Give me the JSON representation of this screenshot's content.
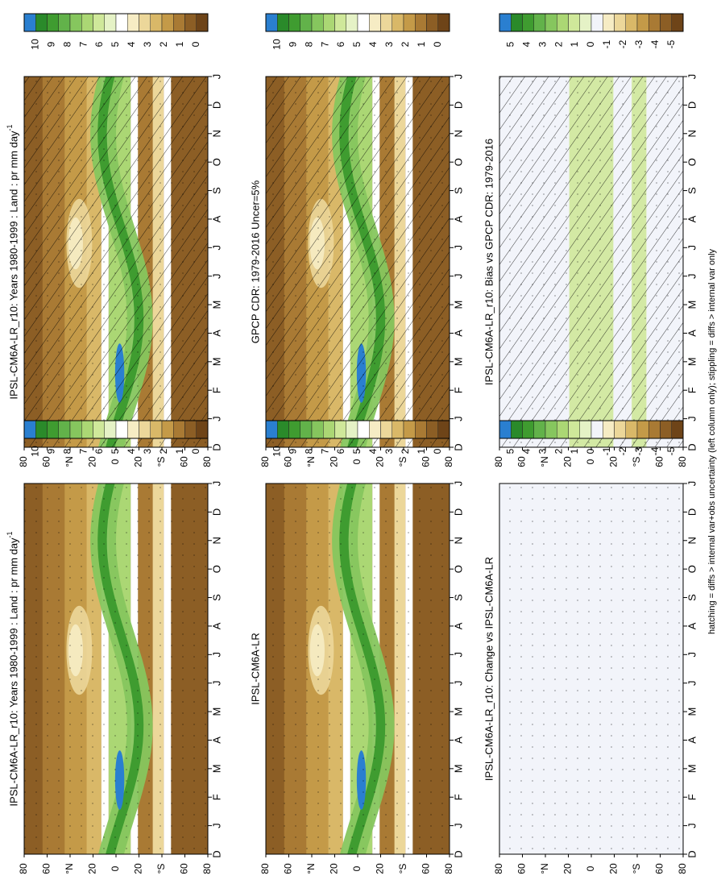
{
  "chart_data": {
    "type": "heatmap",
    "orientation": "rotated-90-clockwise",
    "footer_note": "hatching = diffs > internal var+obs uncertainty (left column only); stippling = diffs > internal var only",
    "panels": [
      {
        "id": "model-left",
        "title": "IPSL-CM6A-LR_r10: Years 1980-1999 : Land : pr mm day",
        "title_suffix": "-1",
        "x_ticks": [
          "D",
          "J",
          "F",
          "M",
          "A",
          "M",
          "J",
          "J",
          "A",
          "S",
          "O",
          "N",
          "D",
          "J"
        ],
        "y_ticks": [
          "80",
          "60",
          "°N",
          "20",
          "0",
          "20",
          "°S",
          "60",
          "80"
        ],
        "colorbar_labels": [
          "10",
          "9",
          "8",
          "7",
          "6",
          "5",
          "4",
          "3",
          "2",
          "1",
          "0"
        ],
        "hatched": true,
        "colorbar": "abs"
      },
      {
        "id": "model-right",
        "title": "IPSL-CM6A-LR_r10: Years 1980-1999 : Land : pr mm day",
        "title_suffix": "-1",
        "x_ticks": [
          "D",
          "J",
          "F",
          "M",
          "A",
          "M",
          "J",
          "J",
          "A",
          "S",
          "O",
          "N",
          "D",
          "J"
        ],
        "y_ticks": [
          "80",
          "60",
          "°N",
          "20",
          "0",
          "20",
          "°S",
          "60",
          "80"
        ],
        "colorbar_labels": [
          "10",
          "9",
          "8",
          "7",
          "6",
          "5",
          "4",
          "3",
          "2",
          "1",
          "0"
        ],
        "hatched": false,
        "colorbar": "abs"
      },
      {
        "id": "obs-left",
        "title": "GPCP CDR: 1979-2016 Uncer=5%",
        "title_suffix": "",
        "x_ticks": [
          "D",
          "J",
          "F",
          "M",
          "A",
          "M",
          "J",
          "J",
          "A",
          "S",
          "O",
          "N",
          "D",
          "J"
        ],
        "y_ticks": [
          "80",
          "60",
          "°N",
          "20",
          "0",
          "20",
          "°S",
          "60",
          "80"
        ],
        "colorbar_labels": [
          "10",
          "9",
          "8",
          "7",
          "6",
          "5",
          "4",
          "3",
          "2",
          "1",
          "0"
        ],
        "hatched": true,
        "colorbar": "abs"
      },
      {
        "id": "obs-right",
        "title": "IPSL-CM6A-LR",
        "title_suffix": "",
        "x_ticks": [
          "D",
          "J",
          "F",
          "M",
          "A",
          "M",
          "J",
          "J",
          "A",
          "S",
          "O",
          "N",
          "D",
          "J"
        ],
        "y_ticks": [
          "80",
          "60",
          "°N",
          "20",
          "0",
          "20",
          "°S",
          "60",
          "80"
        ],
        "colorbar_labels": [
          "10",
          "9",
          "8",
          "7",
          "6",
          "5",
          "4",
          "3",
          "2",
          "1",
          "0"
        ],
        "hatched": false,
        "colorbar": "abs"
      },
      {
        "id": "bias-left",
        "title": "IPSL-CM6A-LR_r10: Bias vs GPCP CDR: 1979-2016",
        "title_suffix": "",
        "x_ticks": [
          "D",
          "J",
          "F",
          "M",
          "A",
          "M",
          "J",
          "J",
          "A",
          "S",
          "O",
          "N",
          "D",
          "J"
        ],
        "y_ticks": [
          "80",
          "60",
          "°N",
          "20",
          "0",
          "20",
          "°S",
          "60",
          "80"
        ],
        "colorbar_labels": [
          "5",
          "4",
          "3",
          "2",
          "1",
          "0",
          "-1",
          "-2",
          "-3",
          "-4",
          "-5"
        ],
        "hatched": true,
        "colorbar": "diff"
      },
      {
        "id": "change-right",
        "title": "IPSL-CM6A-LR_r10: Change vs IPSL-CM6A-LR",
        "title_suffix": "",
        "x_ticks": [
          "D",
          "J",
          "F",
          "M",
          "A",
          "M",
          "J",
          "J",
          "A",
          "S",
          "O",
          "N",
          "D",
          "J"
        ],
        "y_ticks": [
          "80",
          "60",
          "°N",
          "20",
          "0",
          "20",
          "°S",
          "60",
          "80"
        ],
        "colorbar_labels": [
          "5",
          "4",
          "3",
          "2",
          "1",
          "0",
          "-1",
          "-2",
          "-3",
          "-4",
          "-5"
        ],
        "hatched": false,
        "colorbar": "diff"
      }
    ],
    "colors": {
      "abs": [
        "#2a7fd0",
        "#2a8a2a",
        "#3f9c30",
        "#62b24a",
        "#86c65e",
        "#abd774",
        "#cfe89a",
        "#e5f2c6",
        "#ffffff",
        "#f6ecc4",
        "#ecd79a",
        "#d9b868",
        "#c49a48",
        "#a97a34",
        "#8c5e25",
        "#6e4418"
      ],
      "diff": [
        "#2a7fd0",
        "#2a8a2a",
        "#3f9c30",
        "#62b24a",
        "#86c65e",
        "#abd774",
        "#cfe89a",
        "#e5f2c6",
        "#f2f4fa",
        "#f6ecc4",
        "#ecd79a",
        "#d9b868",
        "#c49a48",
        "#a97a34",
        "#8c5e25",
        "#6e4418"
      ]
    }
  }
}
